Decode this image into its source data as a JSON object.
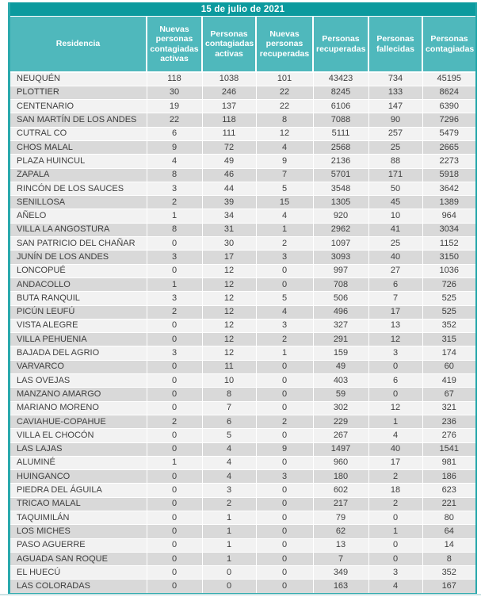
{
  "title": "15 de julio de 2021",
  "table": {
    "columns": [
      "Residencia",
      "Nuevas personas contagiadas activas",
      "Personas contagiadas activas",
      "Nuevas personas recuperadas",
      "Personas recuperadas",
      "Personas fallecidas",
      "Personas contagiadas"
    ],
    "rows": [
      [
        "NEUQUÉN",
        118,
        1038,
        101,
        43423,
        734,
        45195
      ],
      [
        "PLOTTIER",
        30,
        246,
        22,
        8245,
        133,
        8624
      ],
      [
        "CENTENARIO",
        19,
        137,
        22,
        6106,
        147,
        6390
      ],
      [
        "SAN MARTÍN DE LOS ANDES",
        22,
        118,
        8,
        7088,
        90,
        7296
      ],
      [
        "CUTRAL CO",
        6,
        111,
        12,
        5111,
        257,
        5479
      ],
      [
        "CHOS MALAL",
        9,
        72,
        4,
        2568,
        25,
        2665
      ],
      [
        "PLAZA HUINCUL",
        4,
        49,
        9,
        2136,
        88,
        2273
      ],
      [
        "ZAPALA",
        8,
        46,
        7,
        5701,
        171,
        5918
      ],
      [
        "RINCÓN DE LOS SAUCES",
        3,
        44,
        5,
        3548,
        50,
        3642
      ],
      [
        "SENILLOSA",
        2,
        39,
        15,
        1305,
        45,
        1389
      ],
      [
        "AÑELO",
        1,
        34,
        4,
        920,
        10,
        964
      ],
      [
        "VILLA LA ANGOSTURA",
        8,
        31,
        1,
        2962,
        41,
        3034
      ],
      [
        "SAN PATRICIO DEL CHAÑAR",
        0,
        30,
        2,
        1097,
        25,
        1152
      ],
      [
        "JUNÍN DE LOS ANDES",
        3,
        17,
        3,
        3093,
        40,
        3150
      ],
      [
        "LONCOPUÉ",
        0,
        12,
        0,
        997,
        27,
        1036
      ],
      [
        "ANDACOLLO",
        1,
        12,
        0,
        708,
        6,
        726
      ],
      [
        "BUTA RANQUIL",
        3,
        12,
        5,
        506,
        7,
        525
      ],
      [
        "PICÚN LEUFÚ",
        2,
        12,
        4,
        496,
        17,
        525
      ],
      [
        "VISTA ALEGRE",
        0,
        12,
        3,
        327,
        13,
        352
      ],
      [
        "VILLA PEHUENIA",
        0,
        12,
        2,
        291,
        12,
        315
      ],
      [
        "BAJADA DEL AGRIO",
        3,
        12,
        1,
        159,
        3,
        174
      ],
      [
        "VARVARCO",
        0,
        11,
        0,
        49,
        0,
        60
      ],
      [
        "LAS OVEJAS",
        0,
        10,
        0,
        403,
        6,
        419
      ],
      [
        "MANZANO AMARGO",
        0,
        8,
        0,
        59,
        0,
        67
      ],
      [
        "MARIANO MORENO",
        0,
        7,
        0,
        302,
        12,
        321
      ],
      [
        "CAVIAHUE-COPAHUE",
        2,
        6,
        2,
        229,
        1,
        236
      ],
      [
        "VILLA EL CHOCÓN",
        0,
        5,
        0,
        267,
        4,
        276
      ],
      [
        "LAS LAJAS",
        0,
        4,
        9,
        1497,
        40,
        1541
      ],
      [
        "ALUMINÉ",
        1,
        4,
        0,
        960,
        17,
        981
      ],
      [
        "HUINGANCO",
        0,
        4,
        3,
        180,
        2,
        186
      ],
      [
        "PIEDRA DEL ÁGUILA",
        0,
        3,
        0,
        602,
        18,
        623
      ],
      [
        "TRICAO MALAL",
        0,
        2,
        0,
        217,
        2,
        221
      ],
      [
        "TAQUIMILÁN",
        0,
        1,
        0,
        79,
        0,
        80
      ],
      [
        "LOS MICHES",
        0,
        1,
        0,
        62,
        1,
        64
      ],
      [
        "PASO AGUERRE",
        0,
        1,
        0,
        13,
        0,
        14
      ],
      [
        "AGUADA SAN ROQUE",
        0,
        1,
        0,
        7,
        0,
        8
      ],
      [
        "EL HUECÚ",
        0,
        0,
        0,
        349,
        3,
        352
      ],
      [
        "LAS COLORADAS",
        0,
        0,
        0,
        163,
        4,
        167
      ]
    ]
  },
  "colors": {
    "title_bar_bg": "#0C9A9E",
    "header_bg": "#4FB8BC",
    "border": "#2AA9AD",
    "row_light": "#F2F2F2",
    "row_dark": "#D9D9D9",
    "body_text": "#3F3F3F",
    "header_text": "#FFFFFF"
  }
}
